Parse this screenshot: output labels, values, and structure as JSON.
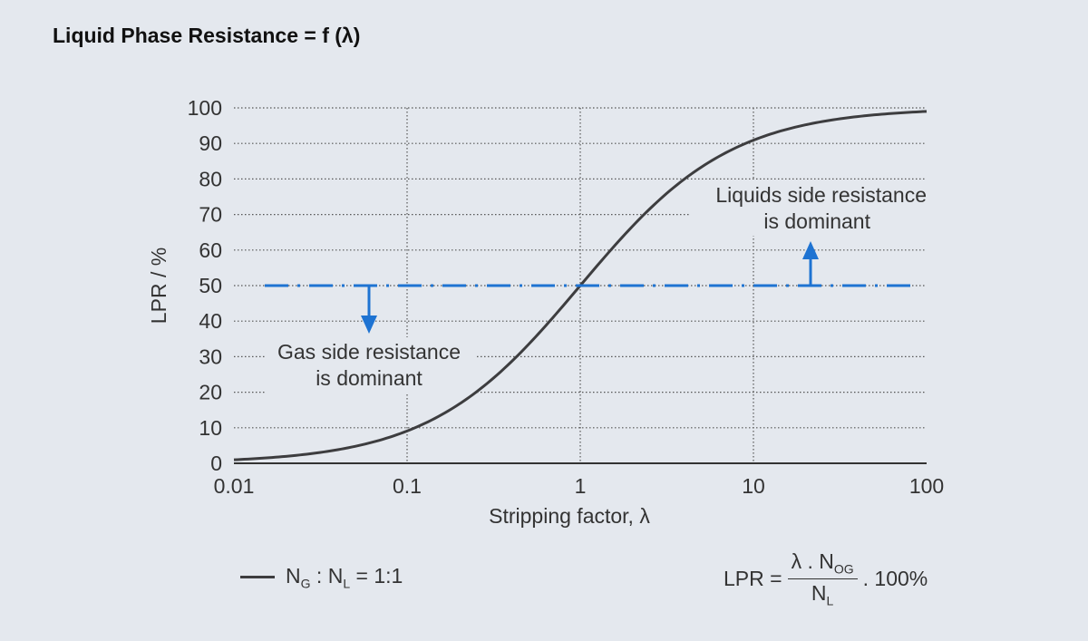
{
  "title": "Liquid Phase Resistance = f (λ)",
  "colors": {
    "curve": "#3d3d3f",
    "threshold": "#1e73d2",
    "grid": "#555555",
    "axis": "#333333",
    "text": "#333333"
  },
  "chart_data": {
    "type": "line",
    "title": "Liquid Phase Resistance = f (λ)",
    "xlabel": "Stripping factor, λ",
    "ylabel": "LPR / %",
    "xscale": "log",
    "xlim": [
      0.01,
      100
    ],
    "ylim": [
      0,
      100
    ],
    "x_ticks": [
      "0.01",
      "0.1",
      "1",
      "10",
      "100"
    ],
    "y_ticks": [
      "0",
      "10",
      "20",
      "30",
      "40",
      "50",
      "60",
      "70",
      "80",
      "90",
      "100"
    ],
    "grid": "dotted",
    "series": [
      {
        "name": "NG : NL = 1:1",
        "x": [
          0.01,
          0.02,
          0.05,
          0.1,
          0.2,
          0.5,
          1,
          2,
          5,
          10,
          20,
          50,
          100
        ],
        "y": [
          1,
          2,
          5,
          9.1,
          16.7,
          33.3,
          50,
          66.7,
          83.3,
          90.9,
          95.2,
          98,
          99
        ]
      }
    ],
    "threshold": {
      "y": 50,
      "style": "dash-dot",
      "color": "#1e73d2"
    },
    "annotations": [
      {
        "lines": [
          "Liquids side resistance",
          "is dominant"
        ],
        "arrow": "up"
      },
      {
        "lines": [
          "Gas side resistance",
          "is dominant"
        ],
        "arrow": "down"
      }
    ],
    "legend_position": "bottom-left"
  },
  "legend": {
    "N1": "N",
    "sub1": "G",
    "colon": " : ",
    "N2": "N",
    "sub2": "L",
    "eq": " = 1:1"
  },
  "formula": {
    "lhs": "LPR =",
    "numerator": "λ . N",
    "num_sub": "OG",
    "denominator": "N",
    "den_sub": "L",
    "suffix": ". 100%"
  }
}
